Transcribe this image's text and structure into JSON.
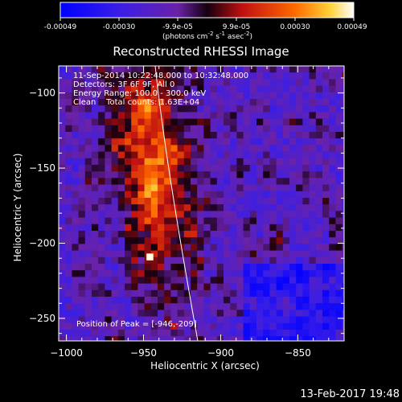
{
  "colorbar": {
    "ticks": [
      "-0.00049",
      "-0.00030",
      "-9.9e-05",
      "9.9e-05",
      "0.00030",
      "0.00049"
    ],
    "unit_prefix": "(photons cm",
    "unit_exp1": "-2",
    "unit_mid": " s",
    "unit_exp2": "-1",
    "unit_mid2": " asec",
    "unit_exp3": "-2",
    "unit_suffix": ")"
  },
  "chart_data": {
    "type": "heatmap",
    "title": "Reconstructed RHESSI Image",
    "xlabel": "Heliocentric X (arcsec)",
    "ylabel": "Heliocentric Y (arcsec)",
    "xlim": [
      -1005,
      -820
    ],
    "ylim": [
      -265,
      -82
    ],
    "xticks": [
      -1000,
      -950,
      -900,
      -850
    ],
    "yticks": [
      -100,
      -150,
      -200,
      -250
    ],
    "colormap": "RHESSI blue-purple-red-yellow-white",
    "colorbar_range": [
      -0.00049,
      0.00049
    ],
    "peak": [
      -946,
      -209
    ],
    "annotations": [
      "11-Sep-2014 10:22:48.000 to 10:32:48.000",
      "Detectors: 3F 6F 9F, All 0",
      "Energy Range: 100.0 - 300.0 keV",
      "Clean    Total counts: 1.63E+04"
    ],
    "peak_label": "Position of Peak = [-946,-209]"
  },
  "footer": {
    "timestamp": "13-Feb-2017 19:48"
  }
}
